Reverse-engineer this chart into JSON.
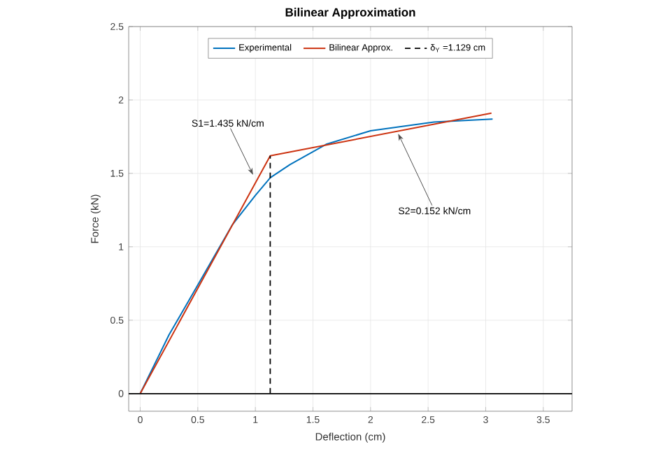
{
  "chart_data": {
    "type": "line",
    "title": "Bilinear Approximation",
    "xlabel": "Deflection (cm)",
    "ylabel": "Force (kN)",
    "xlim": [
      -0.1,
      3.75
    ],
    "ylim": [
      -0.12,
      2.5
    ],
    "xticks": [
      0,
      0.5,
      1,
      1.5,
      2,
      2.5,
      3,
      3.5
    ],
    "yticks": [
      0,
      0.5,
      1,
      1.5,
      2,
      2.5
    ],
    "grid": true,
    "legend": "top",
    "marker": "none",
    "line_style": "solid",
    "series": [
      {
        "name": "Experimental",
        "color": "#0072bd",
        "x": [
          0,
          0.25,
          0.5,
          0.8,
          1.0,
          1.129,
          1.3,
          1.62,
          2.0,
          2.55,
          3.06
        ],
        "values": [
          0,
          0.4,
          0.74,
          1.15,
          1.35,
          1.47,
          1.56,
          1.7,
          1.79,
          1.85,
          1.87
        ]
      },
      {
        "name": "Bilinear Approx.",
        "color": "#cc3311",
        "x": [
          0,
          1.129,
          3.05
        ],
        "values": [
          0,
          1.62,
          1.91
        ]
      }
    ],
    "ref_lines": [
      {
        "axis": "x",
        "value": 1.129,
        "label": "δ$_{Y}$ =1.129 cm",
        "color": "#000000",
        "line_style": "dashed"
      },
      {
        "axis": "y",
        "value": 0,
        "color": "#000000",
        "line_style": "solid"
      }
    ],
    "annotations": [
      {
        "text": "S1=1.435 kN/cm",
        "x": 0.98,
        "y": 1.49
      },
      {
        "text": "S2=0.152 kN/cm",
        "x": 2.24,
        "y": 1.77
      }
    ]
  }
}
